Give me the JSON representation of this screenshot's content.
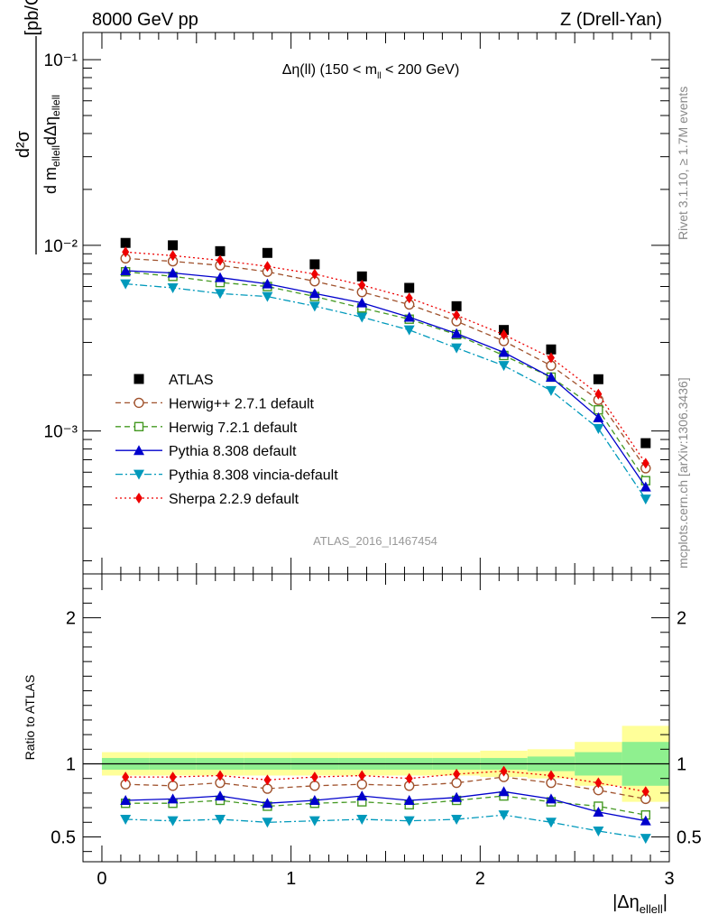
{
  "header": {
    "left": "8000 GeV pp",
    "right": "Z (Drell-Yan)"
  },
  "side_labels": {
    "rivet": "Rivet 3.1.10, ≥ 1.7M events",
    "mcplots": "mcplots.cern.ch [arXiv:1306.3436]"
  },
  "chart_data": [
    {
      "type": "line",
      "panel": "main",
      "title_parts": [
        "Δη(ll) (150 < m",
        "ll",
        " < 200 GeV)"
      ],
      "ylabel_parts": {
        "top": "d²σ",
        "bottom": "d m",
        "sub1": "ellell",
        "mid": "dΔη",
        "sub2": "ellell",
        "unit": "[pb/GeV]"
      },
      "yscale": "log",
      "xlim": [
        -0.1,
        3.0
      ],
      "ylim": [
        0.00017,
        0.14
      ],
      "y_tick_labels": [
        "10⁻¹",
        "10⁻²",
        "10⁻³"
      ],
      "x": [
        0.125,
        0.375,
        0.625,
        0.875,
        1.125,
        1.375,
        1.625,
        1.875,
        2.125,
        2.375,
        2.625,
        2.875
      ],
      "legend_placement": "lower-left",
      "watermark": "ATLAS_2016_I1467454",
      "series": [
        {
          "name": "ATLAS",
          "color": "#000000",
          "marker": "square-filled",
          "line": "none",
          "values": [
            0.0103,
            0.01,
            0.0093,
            0.0091,
            0.0079,
            0.0068,
            0.0059,
            0.0047,
            0.0035,
            0.00275,
            0.0019,
            0.00086
          ]
        },
        {
          "name": "Herwig++ 2.7.1 default",
          "color": "#a0522d",
          "marker": "circle-open",
          "line": "dashed",
          "values": [
            0.0085,
            0.0082,
            0.0078,
            0.0072,
            0.0064,
            0.0056,
            0.0048,
            0.0039,
            0.00305,
            0.00225,
            0.00147,
            0.00063
          ]
        },
        {
          "name": "Herwig 7.2.1 default",
          "color": "#449922",
          "marker": "square-open",
          "line": "dashed",
          "values": [
            0.0072,
            0.0068,
            0.0063,
            0.006,
            0.0053,
            0.0046,
            0.004,
            0.0033,
            0.00255,
            0.00195,
            0.0013,
            0.00054
          ]
        },
        {
          "name": "Pythia 8.308 default",
          "color": "#0000cc",
          "marker": "triangle-up",
          "line": "solid",
          "values": [
            0.0073,
            0.0071,
            0.0067,
            0.0062,
            0.0055,
            0.0049,
            0.0041,
            0.00335,
            0.00265,
            0.00195,
            0.00118,
            0.0005
          ]
        },
        {
          "name": "Pythia 8.308 vincia-default",
          "color": "#0099bb",
          "marker": "triangle-down",
          "line": "dashdot",
          "values": [
            0.0062,
            0.0059,
            0.0055,
            0.0053,
            0.0047,
            0.0041,
            0.0035,
            0.0028,
            0.00225,
            0.00165,
            0.00103,
            0.00043
          ]
        },
        {
          "name": "Sherpa 2.2.9 default",
          "color": "#ee0000",
          "marker": "diamond",
          "line": "dotted",
          "values": [
            0.0092,
            0.0088,
            0.0083,
            0.0077,
            0.007,
            0.0061,
            0.0052,
            0.0042,
            0.0033,
            0.00248,
            0.00158,
            0.00067
          ]
        }
      ]
    },
    {
      "type": "line",
      "panel": "ratio",
      "ylabel": "Ratio to ATLAS",
      "xlabel_parts": {
        "main": "|Δη",
        "sub": "ellell",
        "end": "|"
      },
      "xlim": [
        -0.1,
        3.0
      ],
      "ylim": [
        0.33,
        2.3
      ],
      "x_tick_labels": [
        "0",
        "1",
        "2",
        "3"
      ],
      "y_tick_labels": [
        "0.5",
        "1",
        "2"
      ],
      "x_edges": [
        0.0,
        0.25,
        0.5,
        0.75,
        1.0,
        1.25,
        1.5,
        1.75,
        2.0,
        2.25,
        2.5,
        2.75,
        3.0
      ],
      "band_inner": [
        0.04,
        0.04,
        0.04,
        0.04,
        0.04,
        0.04,
        0.04,
        0.04,
        0.04,
        0.05,
        0.08,
        0.15
      ],
      "band_outer": [
        0.08,
        0.08,
        0.08,
        0.08,
        0.08,
        0.08,
        0.08,
        0.08,
        0.09,
        0.1,
        0.15,
        0.26
      ],
      "band_colors": {
        "inner": "#8ff08f",
        "outer": "#ffff99"
      },
      "reference_line": 1.0,
      "x": [
        0.125,
        0.375,
        0.625,
        0.875,
        1.125,
        1.375,
        1.625,
        1.875,
        2.125,
        2.375,
        2.625,
        2.875
      ],
      "series": [
        {
          "name": "Herwig++ 2.7.1 default",
          "color": "#a0522d",
          "marker": "circle-open",
          "line": "dashed",
          "values": [
            0.86,
            0.85,
            0.87,
            0.83,
            0.85,
            0.86,
            0.85,
            0.87,
            0.91,
            0.87,
            0.82,
            0.76
          ]
        },
        {
          "name": "Herwig 7.2.1 default",
          "color": "#449922",
          "marker": "square-open",
          "line": "dashed",
          "values": [
            0.73,
            0.73,
            0.75,
            0.71,
            0.73,
            0.74,
            0.72,
            0.75,
            0.78,
            0.74,
            0.71,
            0.65
          ]
        },
        {
          "name": "Pythia 8.308 default",
          "color": "#0000cc",
          "marker": "triangle-up",
          "line": "solid",
          "values": [
            0.75,
            0.76,
            0.78,
            0.73,
            0.75,
            0.78,
            0.75,
            0.77,
            0.81,
            0.76,
            0.67,
            0.61
          ]
        },
        {
          "name": "Pythia 8.308 vincia-default",
          "color": "#0099bb",
          "marker": "triangle-down",
          "line": "dashdot",
          "values": [
            0.62,
            0.61,
            0.62,
            0.6,
            0.61,
            0.62,
            0.61,
            0.62,
            0.65,
            0.6,
            0.54,
            0.49
          ]
        },
        {
          "name": "Sherpa 2.2.9 default",
          "color": "#ee0000",
          "marker": "diamond",
          "line": "dotted",
          "values": [
            0.91,
            0.91,
            0.92,
            0.89,
            0.91,
            0.92,
            0.9,
            0.93,
            0.95,
            0.92,
            0.87,
            0.81
          ]
        }
      ]
    }
  ]
}
